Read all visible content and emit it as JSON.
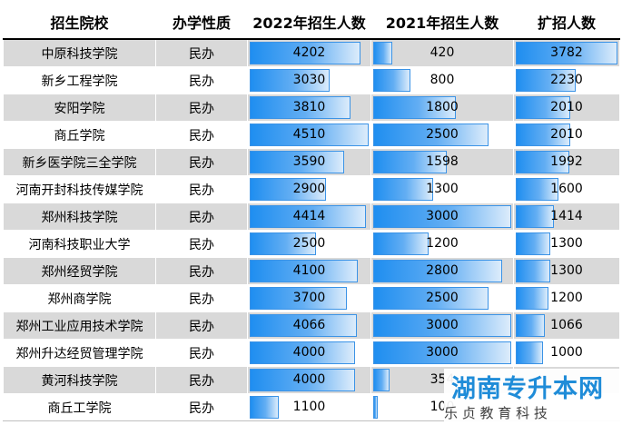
{
  "columns": [
    "招生院校",
    "办学性质",
    "2022年招生人数",
    "2021年招生人数",
    "扩招人数"
  ],
  "max": {
    "y2022": 4510,
    "y2021": 3000,
    "expand": 3782
  },
  "rows": [
    {
      "school": "中原科技学院",
      "type": "民办",
      "y2022": "4202",
      "y2021": "420",
      "expand": "3782"
    },
    {
      "school": "新乡工程学院",
      "type": "民办",
      "y2022": "3030",
      "y2021": "800",
      "expand": "2230"
    },
    {
      "school": "安阳学院",
      "type": "民办",
      "y2022": "3810",
      "y2021": "1800",
      "expand": "2010"
    },
    {
      "school": "商丘学院",
      "type": "民办",
      "y2022": "4510",
      "y2021": "2500",
      "expand": "2010"
    },
    {
      "school": "新乡医学院三全学院",
      "type": "民办",
      "y2022": "3590",
      "y2021": "1598",
      "expand": "1992"
    },
    {
      "school": "河南开封科技传媒学院",
      "type": "民办",
      "y2022": "2900",
      "y2021": "1300",
      "expand": "1600"
    },
    {
      "school": "郑州科技学院",
      "type": "民办",
      "y2022": "4414",
      "y2021": "3000",
      "expand": "1414"
    },
    {
      "school": "河南科技职业大学",
      "type": "民办",
      "y2022": "2500",
      "y2021": "1200",
      "expand": "1300"
    },
    {
      "school": "郑州经贸学院",
      "type": "民办",
      "y2022": "4100",
      "y2021": "2800",
      "expand": "1300"
    },
    {
      "school": "郑州商学院",
      "type": "民办",
      "y2022": "3700",
      "y2021": "2500",
      "expand": "1200"
    },
    {
      "school": "郑州工业应用技术学院",
      "type": "民办",
      "y2022": "4066",
      "y2021": "3000",
      "expand": "1066"
    },
    {
      "school": "郑州升达经贸管理学院",
      "type": "民办",
      "y2022": "4000",
      "y2021": "3000",
      "expand": "1000"
    },
    {
      "school": "黄河科技学院",
      "type": "民办",
      "y2022": "4000",
      "y2021": "354",
      "expand": ""
    },
    {
      "school": "商丘工学院",
      "type": "民办",
      "y2022": "1100",
      "y2021": "100",
      "expand": ""
    }
  ],
  "watermark": {
    "title": "湖南专升本网",
    "subtitle": "乐 贞 教 育 科 技"
  }
}
